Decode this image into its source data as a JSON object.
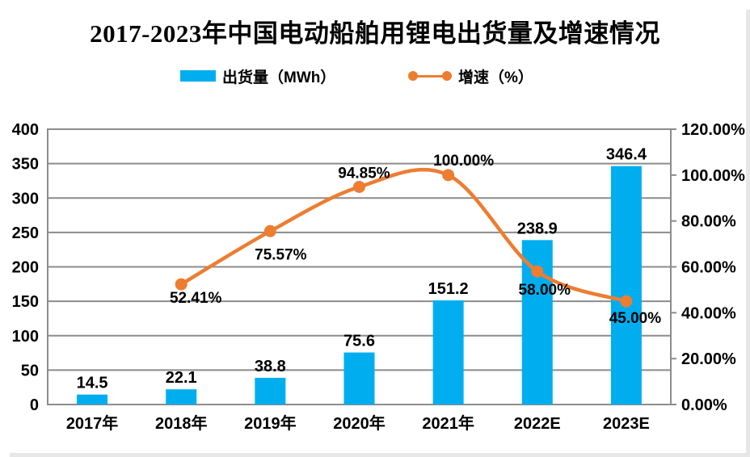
{
  "title": "2017-2023年中国电动船舶用锂电出货量及增速情况",
  "colors": {
    "bar": "#00AEEF",
    "line": "#ED7D31",
    "grid": "#8C8C8C",
    "text": "#000000"
  },
  "chart_data": {
    "type": "bar+line",
    "title": "2017-2023年中国电动船舶用锂电出货量及增速情况",
    "categories": [
      "2017年",
      "2018年",
      "2019年",
      "2020年",
      "2021年",
      "2022E",
      "2023E"
    ],
    "series": [
      {
        "name": "出货量（MWh）",
        "type": "bar",
        "axis": "left",
        "color": "#00AEEF",
        "values": [
          14.5,
          22.1,
          38.8,
          75.6,
          151.2,
          238.9,
          346.4
        ],
        "labels": [
          "14.5",
          "22.1",
          "38.8",
          "75.6",
          "151.2",
          "238.9",
          "346.4"
        ]
      },
      {
        "name": "增速（%）",
        "type": "line",
        "axis": "right",
        "color": "#ED7D31",
        "values": [
          null,
          52.41,
          75.57,
          94.85,
          100.0,
          58.0,
          45.0
        ],
        "labels": [
          null,
          "52.41%",
          "75.57%",
          "94.85%",
          "100.00%",
          "58.00%",
          "45.00%"
        ]
      }
    ],
    "left_axis": {
      "min": 0,
      "max": 400,
      "step": 50,
      "tick_labels": [
        "0",
        "50",
        "100",
        "150",
        "200",
        "250",
        "300",
        "350",
        "400"
      ]
    },
    "right_axis": {
      "min": 0,
      "max": 120,
      "step": 20,
      "tick_labels": [
        "0.00%",
        "20.00%",
        "40.00%",
        "60.00%",
        "80.00%",
        "100.00%",
        "120.00%"
      ]
    },
    "grid": true,
    "legend_position": "top"
  }
}
